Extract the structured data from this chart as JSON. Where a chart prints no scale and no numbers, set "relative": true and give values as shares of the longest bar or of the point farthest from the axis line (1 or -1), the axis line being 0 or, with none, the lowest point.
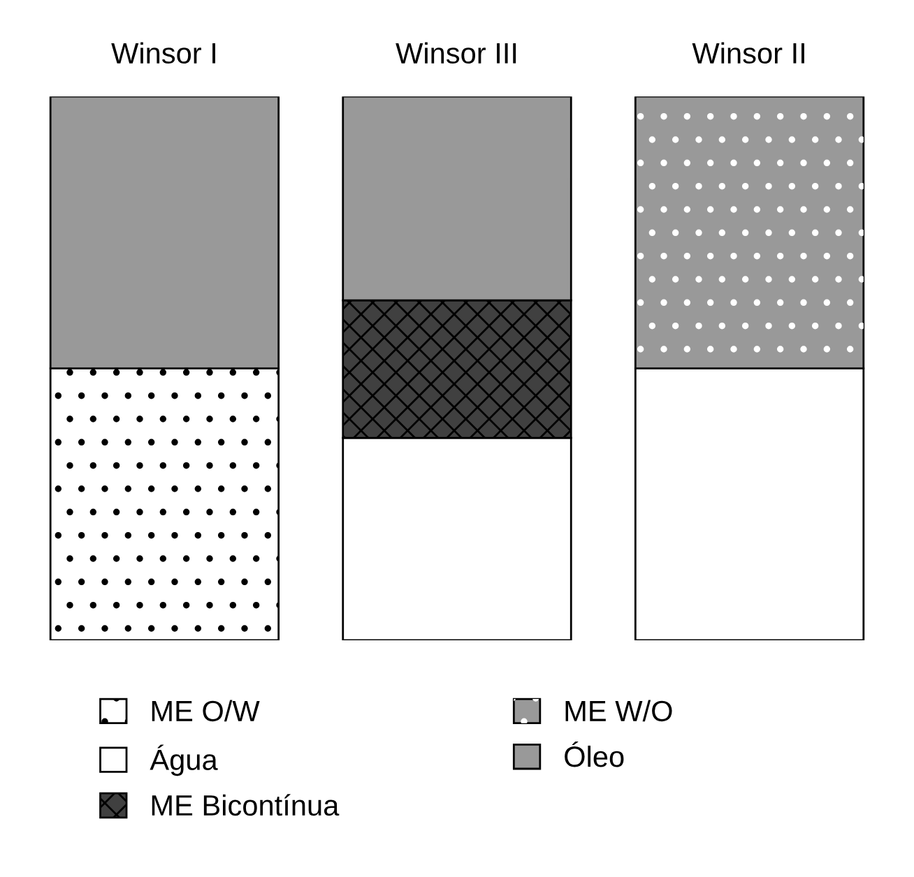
{
  "chart_data": {
    "type": "bar",
    "stacked": true,
    "relative": true,
    "categories": [
      "Winsor I",
      "Winsor III",
      "Winsor II"
    ],
    "series": [
      {
        "name": "ME O/W",
        "color": "#ffffff",
        "values": [
          0.5,
          0,
          0
        ]
      },
      {
        "name": "Água",
        "color": "#ffffff",
        "values": [
          0,
          0.372,
          0.5
        ]
      },
      {
        "name": "ME Bicontínua",
        "color": "#404040",
        "values": [
          0,
          0.253,
          0
        ]
      },
      {
        "name": "ME W/O",
        "color": "#999999",
        "values": [
          0,
          0,
          0.5
        ]
      },
      {
        "name": "Óleo",
        "color": "#999999",
        "values": [
          0.5,
          0.375,
          0
        ]
      }
    ],
    "legend": "bottom",
    "grid": false
  }
}
